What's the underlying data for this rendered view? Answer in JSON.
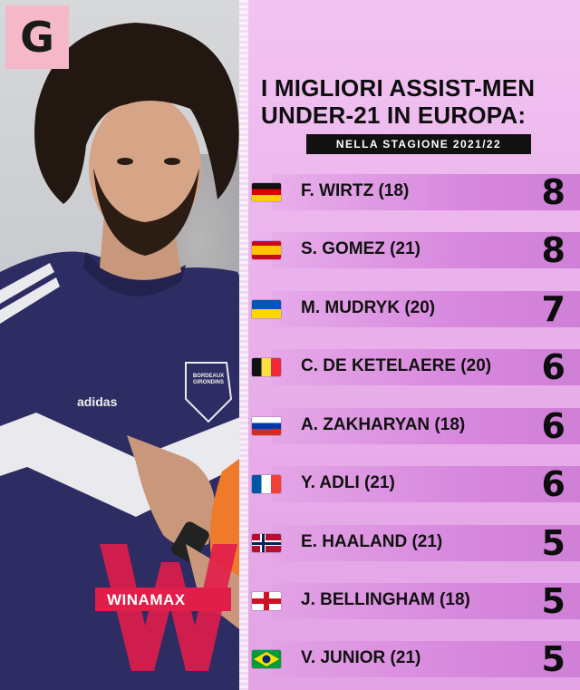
{
  "brand": {
    "logo_letter": "G"
  },
  "title": {
    "line1": "I MIGLIORI ASSIST-MEN",
    "line2": "UNDER-21 IN EUROPA:"
  },
  "subtitle": "NELLA STAGIONE 2021/22",
  "photo": {
    "jersey_badge": "BORDEAUX GIRONDINS",
    "sponsor": "WINAMAX",
    "kit_brand": "adidas"
  },
  "players": [
    {
      "name": "F. WIRTZ (18)",
      "assists": "8",
      "flag": "germany-flag"
    },
    {
      "name": "S. GOMEZ (21)",
      "assists": "8",
      "flag": "spain-flag"
    },
    {
      "name": "M. MUDRYK (20)",
      "assists": "7",
      "flag": "ukraine-flag"
    },
    {
      "name": "C. DE KETELAERE (20)",
      "assists": "6",
      "flag": "belgium-flag"
    },
    {
      "name": "A. ZAKHARYAN (18)",
      "assists": "6",
      "flag": "russia-flag"
    },
    {
      "name": "Y. ADLI (21)",
      "assists": "6",
      "flag": "france-flag"
    },
    {
      "name": "E. HAALAND (21)",
      "assists": "5",
      "flag": "norway-flag"
    },
    {
      "name": "J. BELLINGHAM (18)",
      "assists": "5",
      "flag": "england-flag"
    },
    {
      "name": "V. JUNIOR (21)",
      "assists": "5",
      "flag": "brazil-flag"
    }
  ],
  "colors": {
    "panel_pink": "#eab2ec",
    "bar_pink": "#d889de",
    "text_dark": "#0d0d0d"
  }
}
